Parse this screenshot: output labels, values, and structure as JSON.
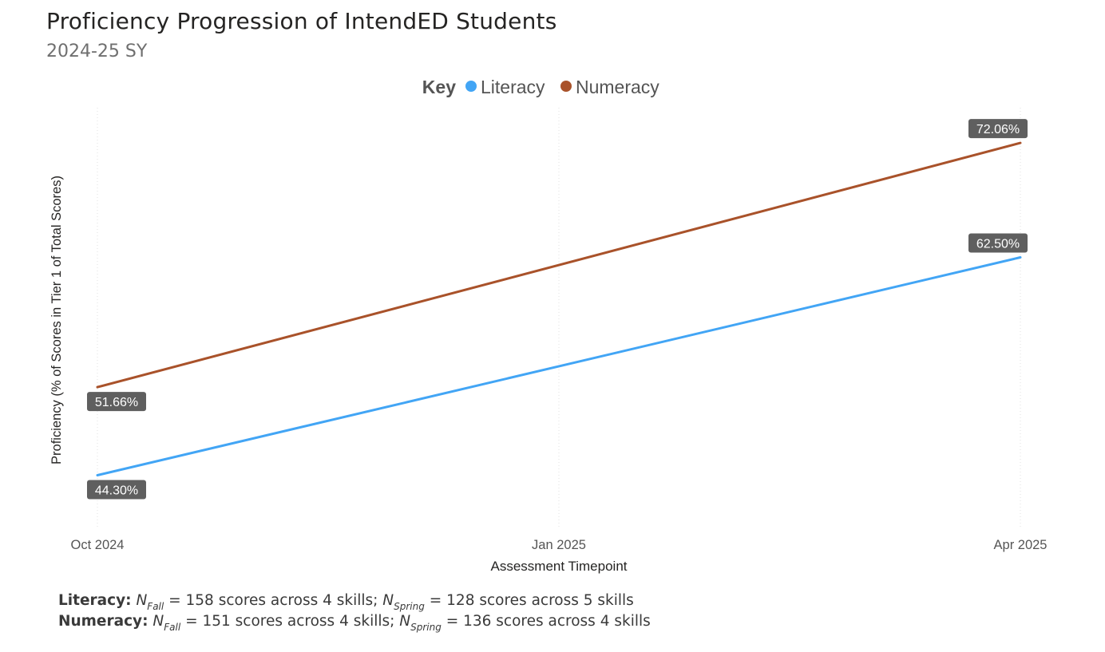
{
  "header": {
    "title": "Proficiency Progression of IntendED Students",
    "subtitle": "2024-25 SY"
  },
  "legend": {
    "key_label": "Key",
    "items": [
      {
        "name": "Literacy",
        "color": "#42a5f5"
      },
      {
        "name": "Numeracy",
        "color": "#a9522a"
      }
    ]
  },
  "chart_data": {
    "type": "line",
    "x": [
      "Oct 2024",
      "Jan 2025",
      "Apr 2025"
    ],
    "xlabel": "Assessment Timepoint",
    "ylabel": "Proficiency (% of Scores in Tier 1 of Total Scores)",
    "ylim": [
      40,
      75
    ],
    "series": [
      {
        "name": "Literacy",
        "color": "#42a5f5",
        "points": [
          {
            "x": "Oct 2024",
            "y": 44.3,
            "label": "44.30%"
          },
          {
            "x": "Apr 2025",
            "y": 62.5,
            "label": "62.50%"
          }
        ]
      },
      {
        "name": "Numeracy",
        "color": "#a9522a",
        "points": [
          {
            "x": "Oct 2024",
            "y": 51.66,
            "label": "51.66%"
          },
          {
            "x": "Apr 2025",
            "y": 72.06,
            "label": "72.06%"
          }
        ]
      }
    ]
  },
  "footnotes": {
    "literacy": {
      "label": "Literacy:",
      "n_symbol": "N",
      "fall_sub": "Fall",
      "fall_text": "= 158 scores across 4 skills;",
      "spring_sub": "Spring",
      "spring_text": "= 128 scores across 5 skills"
    },
    "numeracy": {
      "label": "Numeracy:",
      "n_symbol": "N",
      "fall_sub": "Fall",
      "fall_text": "= 151 scores across 4 skills;",
      "spring_sub": "Spring",
      "spring_text": "= 136 scores across 4 skills"
    }
  }
}
